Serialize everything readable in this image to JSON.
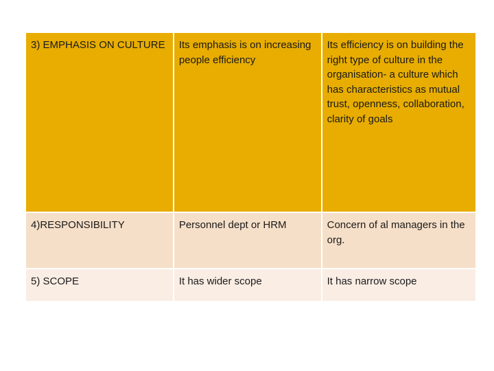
{
  "table": {
    "rows": [
      {
        "c1": "3) EMPHASIS ON CULTURE",
        "c2": "Its emphasis is on increasing people efficiency",
        "c3": "Its efficiency is on building the right type of culture in the organisation-  a culture which has characteristics as mutual trust, openness, collaboration, clarity of goals"
      },
      {
        "c1": "4)RESPONSIBILITY",
        "c2": "Personnel dept or HRM",
        "c3": "Concern of al managers in the org."
      },
      {
        "c1": "5) SCOPE",
        "c2": "It has wider scope",
        "c3": "It has narrow scope"
      }
    ],
    "colors": {
      "header_row": "#e8ad00",
      "band_dark": "#f6dfc8",
      "band_light": "#faede4",
      "text": "#1a1a1a"
    }
  }
}
